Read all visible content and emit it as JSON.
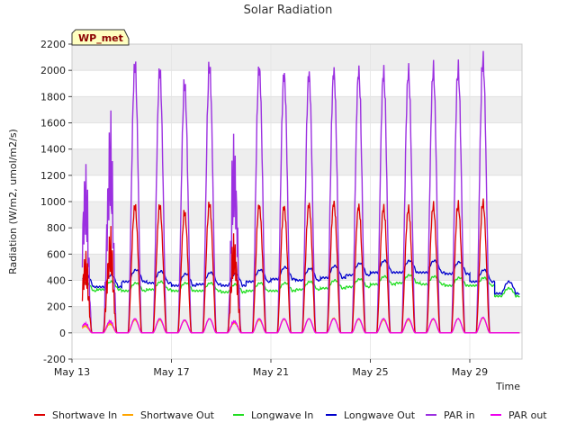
{
  "chart_data": {
    "type": "line",
    "title": "Solar Radiation",
    "xlabel": "Time",
    "ylabel": "Radiation (W/m2, umol/m2/s)",
    "site_label": "WP_met",
    "ylim": [
      -200,
      2200
    ],
    "yticks": [
      -200,
      0,
      200,
      400,
      600,
      800,
      1000,
      1200,
      1400,
      1600,
      1800,
      2000,
      2200
    ],
    "xlim": [
      13,
      31.1
    ],
    "xticks": [
      {
        "day": 13,
        "label": "May 13"
      },
      {
        "day": 17,
        "label": "May 17"
      },
      {
        "day": 21,
        "label": "May 21"
      },
      {
        "day": 25,
        "label": "May 25"
      },
      {
        "day": 29,
        "label": "May 29"
      }
    ],
    "grid": true,
    "legend_position": "bottom",
    "days": [
      13,
      14,
      15,
      16,
      17,
      18,
      19,
      20,
      21,
      22,
      23,
      24,
      25,
      26,
      27,
      28,
      29,
      30
    ],
    "series": [
      {
        "name": "Shortwave In",
        "color": "#dd0000",
        "daily_peak": [
          700,
          870,
          1010,
          1010,
          960,
          1030,
          850,
          1020,
          1010,
          1030,
          1040,
          1010,
          1000,
          990,
          1010,
          1020,
          1040,
          0
        ]
      },
      {
        "name": "Shortwave Out",
        "color": "#ffa500",
        "daily_peak": [
          60,
          80,
          100,
          100,
          95,
          110,
          90,
          100,
          105,
          110,
          115,
          105,
          100,
          100,
          105,
          110,
          115,
          0
        ]
      },
      {
        "name": "Longwave In",
        "color": "#22dd22",
        "daily_peak": [
          380,
          390,
          380,
          390,
          380,
          380,
          370,
          380,
          380,
          390,
          400,
          410,
          430,
          440,
          430,
          420,
          420,
          340
        ]
      },
      {
        "name": "Longwave Out",
        "color": "#0000cc",
        "daily_peak": [
          440,
          440,
          480,
          470,
          450,
          460,
          450,
          480,
          500,
          490,
          510,
          530,
          550,
          550,
          550,
          540,
          480,
          390
        ]
      },
      {
        "name": "PAR in",
        "color": "#9b30e0",
        "daily_peak": [
          1440,
          1810,
          2130,
          2080,
          1980,
          2130,
          1700,
          2120,
          2070,
          2070,
          2090,
          2090,
          2080,
          2080,
          2090,
          2100,
          2180,
          0
        ]
      },
      {
        "name": "PAR out",
        "color": "#ee00ee",
        "daily_peak": [
          80,
          100,
          110,
          110,
          100,
          110,
          100,
          110,
          110,
          110,
          110,
          110,
          110,
          110,
          110,
          110,
          120,
          0
        ]
      }
    ]
  }
}
